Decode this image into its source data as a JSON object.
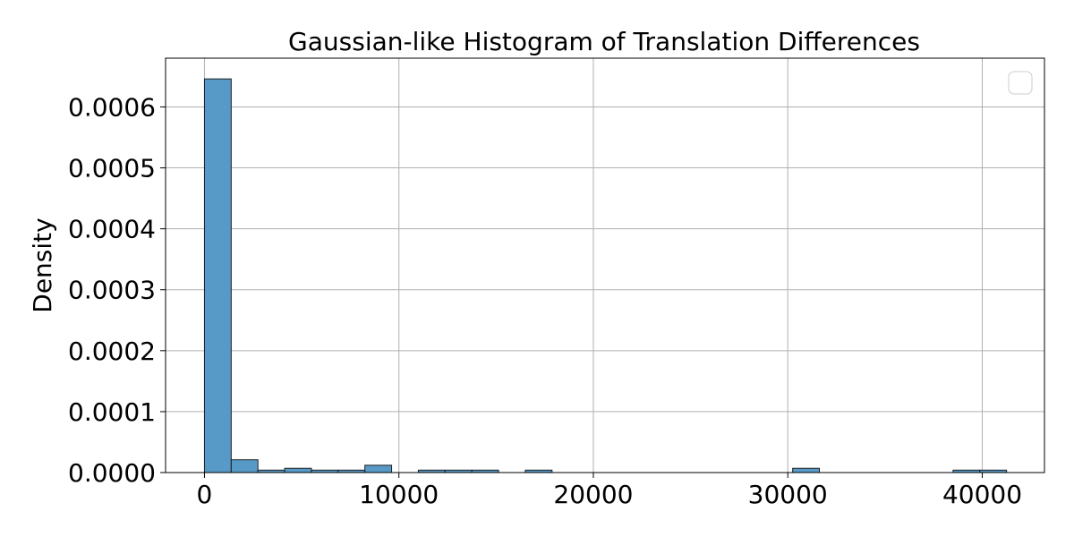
{
  "chart_data": {
    "type": "bar",
    "title": "Gaussian-like Histogram of Translation Differences",
    "xlabel": "",
    "ylabel": "Density",
    "xlim": [
      -2000,
      43200
    ],
    "ylim": [
      0,
      0.00068
    ],
    "x_ticks": [
      0,
      10000,
      20000,
      30000,
      40000
    ],
    "x_tick_labels": [
      "0",
      "10000",
      "20000",
      "30000",
      "40000"
    ],
    "y_ticks": [
      0,
      0.0001,
      0.0002,
      0.0003,
      0.0004,
      0.0005,
      0.0006
    ],
    "y_tick_labels": [
      "0.0000",
      "0.0001",
      "0.0002",
      "0.0003",
      "0.0004",
      "0.0005",
      "0.0006"
    ],
    "grid": true,
    "legend": "top-right",
    "bar_color": "#5799c7",
    "bins": {
      "start": 0,
      "width": 1375,
      "densities": [
        0.000646,
        2.1e-05,
        4e-06,
        7e-06,
        4e-06,
        4e-06,
        1.2e-05,
        0,
        4e-06,
        4e-06,
        4e-06,
        0,
        4e-06,
        0,
        0,
        0,
        0,
        0,
        0,
        0,
        0,
        0,
        7e-06,
        0,
        0,
        0,
        0,
        0,
        4e-06,
        4e-06
      ]
    }
  }
}
